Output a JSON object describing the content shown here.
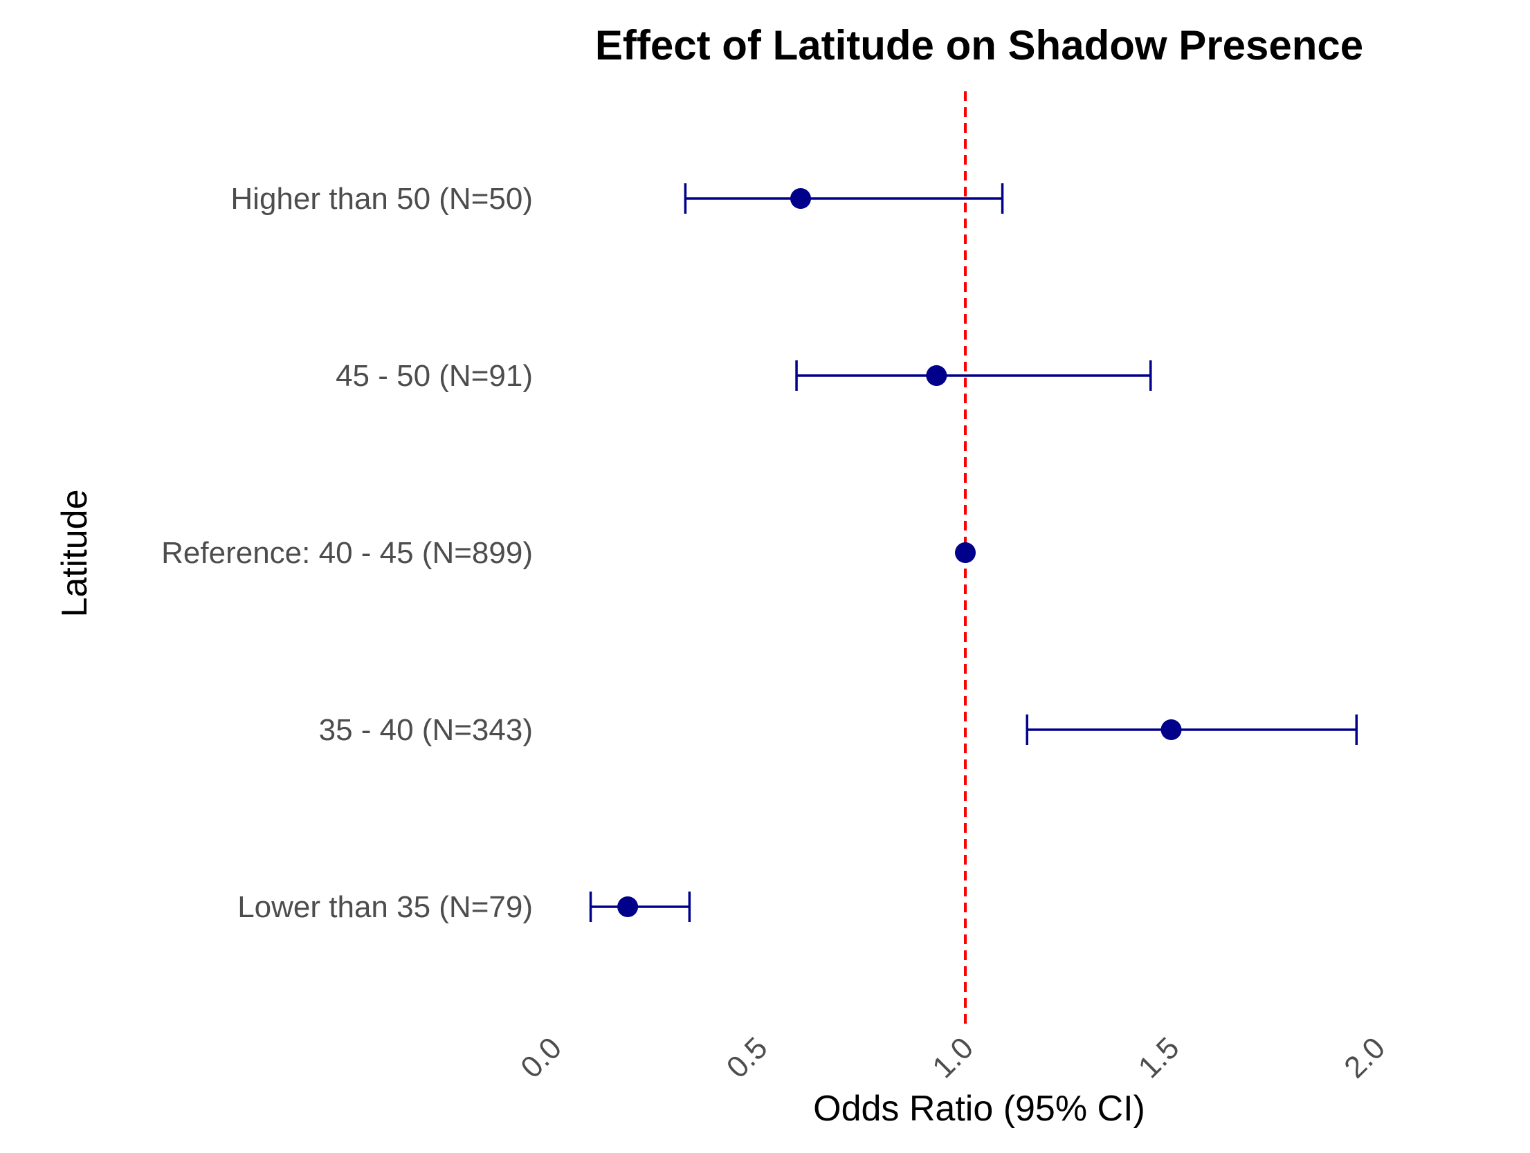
{
  "chart_data": {
    "type": "forest",
    "title": "Effect of Latitude on Shadow Presence",
    "xlabel": "Odds Ratio (95% CI)",
    "ylabel": "Latitude",
    "xlim": [
      0,
      2
    ],
    "xticks": [
      "0.0",
      "0.5",
      "1.0",
      "1.5",
      "2.0"
    ],
    "reference_line": 1.0,
    "grid": false,
    "categories": [
      "Higher than 50 (N=50)",
      "45 - 50 (N=91)",
      "Reference: 40 - 45 (N=899)",
      "35 - 40 (N=343)",
      "Lower than 35 (N=79)"
    ],
    "estimates": [
      0.6,
      0.93,
      1.0,
      1.5,
      0.18
    ],
    "ci_lower": [
      0.32,
      0.59,
      null,
      1.15,
      0.09
    ],
    "ci_upper": [
      1.09,
      1.45,
      null,
      1.95,
      0.33
    ],
    "colors": {
      "point": "#00008B",
      "reference_line": "#FF0000"
    }
  }
}
